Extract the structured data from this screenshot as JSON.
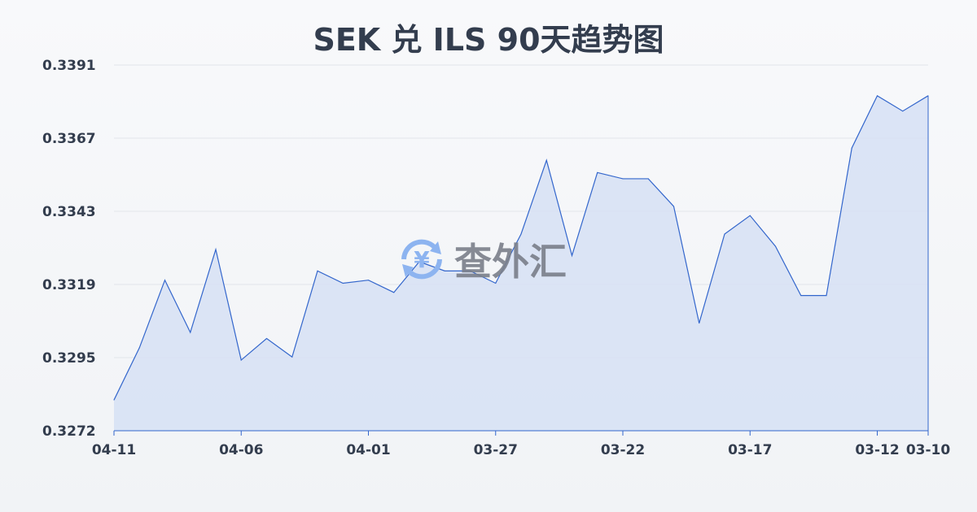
{
  "chart_data": {
    "type": "area",
    "title": "SEK 兑 ILS 90天趋势图",
    "xlabel": "",
    "ylabel": "",
    "ylim": [
      0.3272,
      0.3391
    ],
    "y_ticks": [
      "0.3391",
      "0.3367",
      "0.3343",
      "0.3319",
      "0.3295",
      "0.3272"
    ],
    "x_ticks": [
      "04-11",
      "04-06",
      "04-01",
      "03-27",
      "03-22",
      "03-17",
      "03-12",
      "03-10"
    ],
    "x_tick_index": [
      0,
      5,
      10,
      15,
      20,
      25,
      30,
      32
    ],
    "grid": true,
    "line_color": "#3366cc",
    "fill_color": "#d6e0f5",
    "values": [
      0.3282,
      0.3299,
      0.3321,
      0.3304,
      0.3331,
      0.3295,
      0.3302,
      0.3296,
      0.3324,
      0.332,
      0.3321,
      0.3317,
      0.3327,
      0.3324,
      0.3324,
      0.332,
      0.3336,
      0.336,
      0.3329,
      0.3356,
      0.3354,
      0.3354,
      0.3345,
      0.3307,
      0.3336,
      0.3342,
      0.3332,
      0.3316,
      0.3316,
      0.3364,
      0.3381,
      0.3376,
      0.3381
    ]
  },
  "watermark": "查外汇"
}
